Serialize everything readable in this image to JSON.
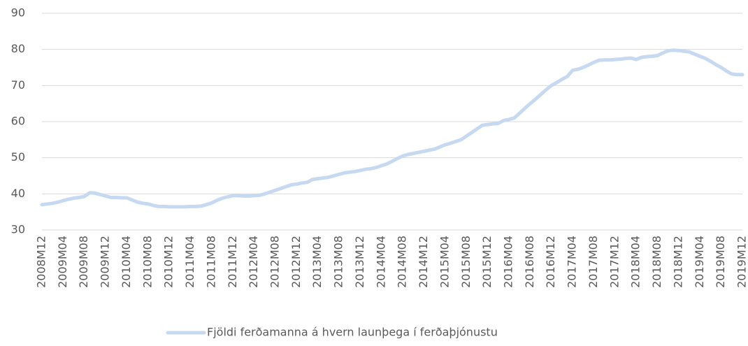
{
  "chart_data": {
    "type": "line",
    "categories": [
      "2008M12",
      null,
      null,
      null,
      "2009M04",
      null,
      null,
      null,
      "2009M08",
      null,
      null,
      null,
      "2009M12",
      null,
      null,
      null,
      "2010M04",
      null,
      null,
      null,
      "2010M08",
      null,
      null,
      null,
      "2010M12",
      null,
      null,
      null,
      "2011M04",
      null,
      null,
      null,
      "2011M08",
      null,
      null,
      null,
      "2011M12",
      null,
      null,
      null,
      "2012M04",
      null,
      null,
      null,
      "2012M08",
      null,
      null,
      null,
      "2012M12",
      null,
      null,
      null,
      "2013M04",
      null,
      null,
      null,
      "2013M08",
      null,
      null,
      null,
      "2013M12",
      null,
      null,
      null,
      "2014M04",
      null,
      null,
      null,
      "2014M08",
      null,
      null,
      null,
      "2014M12",
      null,
      null,
      null,
      "2015M04",
      null,
      null,
      null,
      "2015M08",
      null,
      null,
      null,
      "2015M12",
      null,
      null,
      null,
      "2016M04",
      null,
      null,
      null,
      "2016M08",
      null,
      null,
      null,
      "2016M12",
      null,
      null,
      null,
      "2017M04",
      null,
      null,
      null,
      "2017M08",
      null,
      null,
      null,
      "2017M12",
      null,
      null,
      null,
      "2018M04",
      null,
      null,
      null,
      "2018M08",
      null,
      null,
      null,
      "2018M12",
      null,
      null,
      null,
      "2019M04",
      null,
      null,
      null,
      "2019M08",
      null,
      null,
      null,
      "2019M12"
    ],
    "series": [
      {
        "name": "Fjöldi ferðamanna á hvern launþega í ferðaþjónustu",
        "color": "#c6d9f1",
        "values": [
          37,
          37.2,
          37.4,
          37.7,
          38.1,
          38.5,
          38.8,
          39,
          39.3,
          40.3,
          40.2,
          39.8,
          39.4,
          39,
          39,
          38.9,
          38.9,
          38.3,
          37.7,
          37.4,
          37.2,
          36.8,
          36.5,
          36.5,
          36.4,
          36.4,
          36.4,
          36.4,
          36.5,
          36.5,
          36.6,
          37,
          37.5,
          38.2,
          38.8,
          39.2,
          39.5,
          39.5,
          39.4,
          39.4,
          39.5,
          39.6,
          40,
          40.5,
          41,
          41.5,
          42,
          42.5,
          42.7,
          43,
          43.2,
          44,
          44.2,
          44.4,
          44.6,
          45,
          45.4,
          45.8,
          46,
          46.2,
          46.5,
          46.8,
          47,
          47.3,
          47.8,
          48.3,
          49,
          49.8,
          50.5,
          50.9,
          51.2,
          51.5,
          51.8,
          52.1,
          52.4,
          53,
          53.6,
          54,
          54.5,
          55,
          56,
          57,
          58,
          59,
          59.2,
          59.4,
          59.5,
          60.3,
          60.6,
          61,
          62.3,
          63.7,
          65,
          66.2,
          67.5,
          68.8,
          70,
          70.8,
          71.7,
          72.5,
          74.2,
          74.5,
          75,
          75.7,
          76.4,
          77,
          77.1,
          77.1,
          77.2,
          77.3,
          77.5,
          77.6,
          77.2,
          77.8,
          78,
          78.1,
          78.3,
          79,
          79.6,
          79.8,
          79.7,
          79.5,
          79.3,
          78.7,
          78.1,
          77.5,
          76.7,
          75.8,
          75,
          74,
          73.2,
          73,
          73
        ]
      }
    ],
    "ylim": [
      30,
      90
    ],
    "yticks": [
      30,
      40,
      50,
      60,
      70,
      80,
      90
    ],
    "grid": true,
    "legend": "bottom"
  }
}
